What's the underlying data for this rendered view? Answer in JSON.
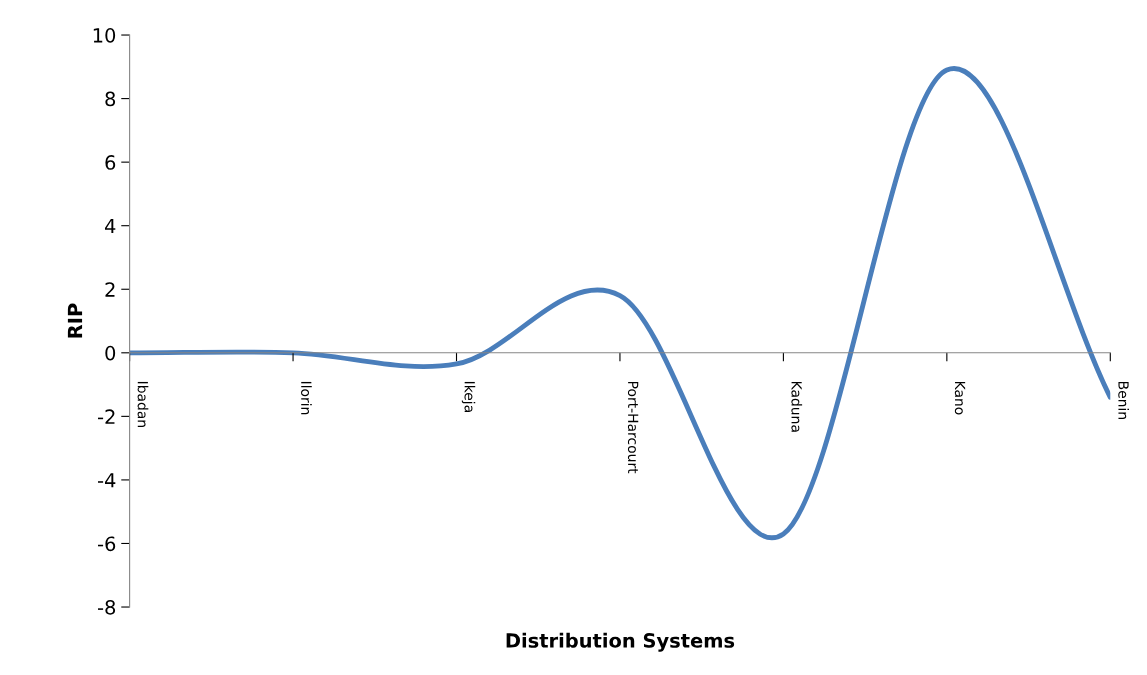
{
  "chart_data": {
    "type": "line",
    "xlabel": "Distribution Systems",
    "ylabel": "RIP",
    "categories": [
      "Ibadan",
      "Ilorin",
      "Ikeja",
      "Port-Harcourt",
      "Kaduna",
      "Kano",
      "Benin"
    ],
    "series": [
      {
        "color": "#4a7ebb",
        "values": [
          0,
          0,
          -0.35,
          1.8,
          -5.7,
          8.9,
          -1.4
        ]
      }
    ],
    "ylim": [
      -8,
      10
    ],
    "yticks": [
      -8,
      -6,
      -4,
      -2,
      0,
      2,
      4,
      6,
      8,
      10
    ],
    "grid": false,
    "legend": false,
    "marker": "none",
    "line_style": "solid"
  }
}
